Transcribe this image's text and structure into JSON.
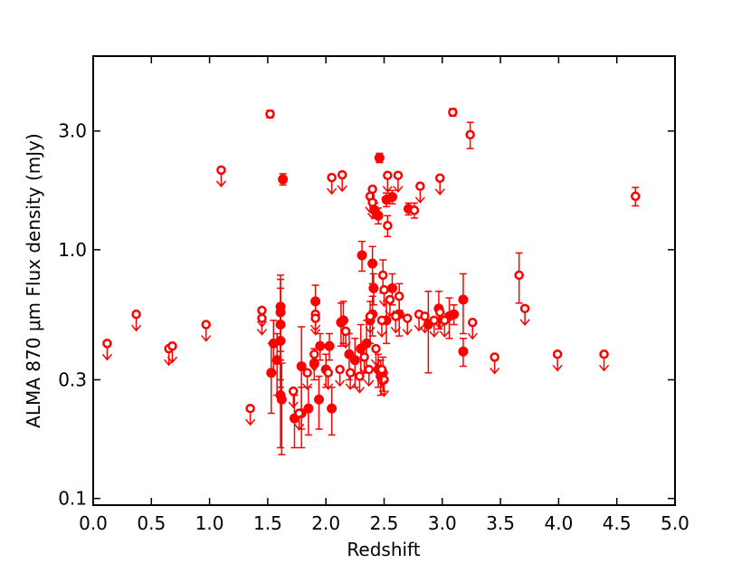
{
  "chart_data": {
    "type": "scatter",
    "xlabel": "Redshift",
    "ylabel": "ALMA 870 μm Flux density (mJy)",
    "xlim": [
      0,
      5
    ],
    "ylim": [
      0.094,
      6.0
    ],
    "log_y": true,
    "color": "#ff0000",
    "xticks": [
      {
        "value": 0,
        "label": "0.0"
      },
      {
        "value": 0.5,
        "label": "0.5"
      },
      {
        "value": 1,
        "label": "1.0"
      },
      {
        "value": 1.5,
        "label": "1.5"
      },
      {
        "value": 2,
        "label": "2.0"
      },
      {
        "value": 2.5,
        "label": "2.5"
      },
      {
        "value": 3,
        "label": "3.0"
      },
      {
        "value": 3.5,
        "label": "3.5"
      },
      {
        "value": 4,
        "label": "4.0"
      },
      {
        "value": 4.5,
        "label": "4.5"
      },
      {
        "value": 5,
        "label": "5.0"
      }
    ],
    "yticks": [
      0.1,
      0.3,
      {
        "value": 1,
        "label": "1.0"
      },
      {
        "value": 3,
        "label": "3.0"
      }
    ],
    "series": [
      {
        "color": "#ff0000",
        "marker": "filled",
        "upper_limit": false,
        "x": [
          1.63,
          2.46,
          2.31,
          2.4,
          1.91,
          1.61,
          1.61,
          1.61,
          1.61,
          1.55,
          1.53,
          1.58,
          1.61,
          1.62,
          1.79,
          1.94,
          2.05,
          2.13,
          2.15,
          2.2,
          2.25,
          2.3,
          2.35,
          2.38,
          2.4,
          2.41,
          2.45,
          2.47,
          2.49,
          2.52,
          2.57,
          2.63,
          2.71,
          2.52,
          2.45,
          3.18,
          3.18,
          2.97,
          3.06,
          3.1,
          2.03,
          1.95,
          1.85,
          1.79,
          1.73,
          1.9,
          2.0,
          2.88,
          2.42,
          2.57
        ],
        "values": [
          1.92,
          2.34,
          0.95,
          0.88,
          0.62,
          0.59,
          0.56,
          0.5,
          0.43,
          0.42,
          0.32,
          0.36,
          0.26,
          0.25,
          0.34,
          0.25,
          0.23,
          0.51,
          0.52,
          0.38,
          0.36,
          0.4,
          0.42,
          0.52,
          0.55,
          0.7,
          0.33,
          0.31,
          0.32,
          0.52,
          0.7,
          0.55,
          1.46,
          1.59,
          1.37,
          0.63,
          0.39,
          0.58,
          0.54,
          0.55,
          0.41,
          0.41,
          0.23,
          0.22,
          0.21,
          0.35,
          0.33,
          0.5,
          1.44,
          1.63
        ],
        "yerr": [
          0.1,
          0.1,
          0.13,
          0.15,
          0.1,
          0.2,
          0.2,
          0.2,
          0.15,
          0.1,
          0.1,
          0.1,
          0.1,
          0.1,
          0.15,
          0.06,
          0.05,
          0.1,
          0.1,
          0.08,
          0.08,
          0.1,
          0.1,
          0.1,
          0.1,
          0.1,
          0.05,
          0.05,
          0.05,
          0.1,
          0.1,
          0.1,
          0.08,
          0.1,
          0.1,
          0.17,
          0.05,
          0.1,
          0.1,
          0.05,
          0.05,
          0.05,
          0.05,
          0.06,
          0.05,
          0.05,
          0.05,
          0.18,
          0.1,
          0.1
        ]
      },
      {
        "color": "#ff0000",
        "marker": "open",
        "upper_limit": false,
        "x": [
          1.52,
          3.09,
          3.24,
          4.66,
          3.66,
          2.53,
          2.76,
          2.49,
          2.63
        ],
        "values": [
          3.51,
          3.57,
          2.9,
          1.64,
          0.79,
          1.25,
          1.44,
          0.79,
          0.65
        ],
        "yerr": [
          0.12,
          0.12,
          0.35,
          0.14,
          0.18,
          0.12,
          0.1,
          0.12,
          0.08
        ]
      },
      {
        "color": "#ff0000",
        "marker": "open",
        "upper_limit": true,
        "x": [
          0.12,
          0.37,
          0.65,
          0.68,
          0.97,
          1.1,
          1.35,
          1.45,
          1.45,
          2.05,
          2.14,
          1.91,
          1.91,
          2.81,
          2.98,
          2.62,
          2.53,
          3.45,
          3.99,
          4.39,
          3.26,
          3.71,
          2.38,
          2.4,
          2.4,
          1.72,
          1.77,
          1.84,
          1.9,
          2.02,
          2.12,
          2.17,
          2.21,
          2.29,
          2.33,
          2.37,
          2.43,
          2.5,
          2.48,
          2.5,
          2.55,
          2.6,
          2.7,
          2.8,
          2.85,
          2.93,
          2.98,
          3.02,
          2.48,
          2.38
        ],
        "values": [
          0.42,
          0.55,
          0.4,
          0.41,
          0.5,
          2.09,
          0.23,
          0.57,
          0.53,
          1.95,
          2.0,
          0.55,
          0.53,
          1.8,
          1.94,
          1.99,
          1.99,
          0.37,
          0.38,
          0.38,
          0.51,
          0.58,
          1.64,
          1.75,
          1.55,
          0.27,
          0.22,
          0.32,
          0.38,
          0.32,
          0.33,
          0.47,
          0.32,
          0.31,
          0.37,
          0.33,
          0.4,
          0.3,
          0.33,
          0.69,
          0.63,
          0.54,
          0.53,
          0.55,
          0.54,
          0.52,
          0.56,
          0.52,
          0.52,
          0.54
        ]
      }
    ]
  }
}
